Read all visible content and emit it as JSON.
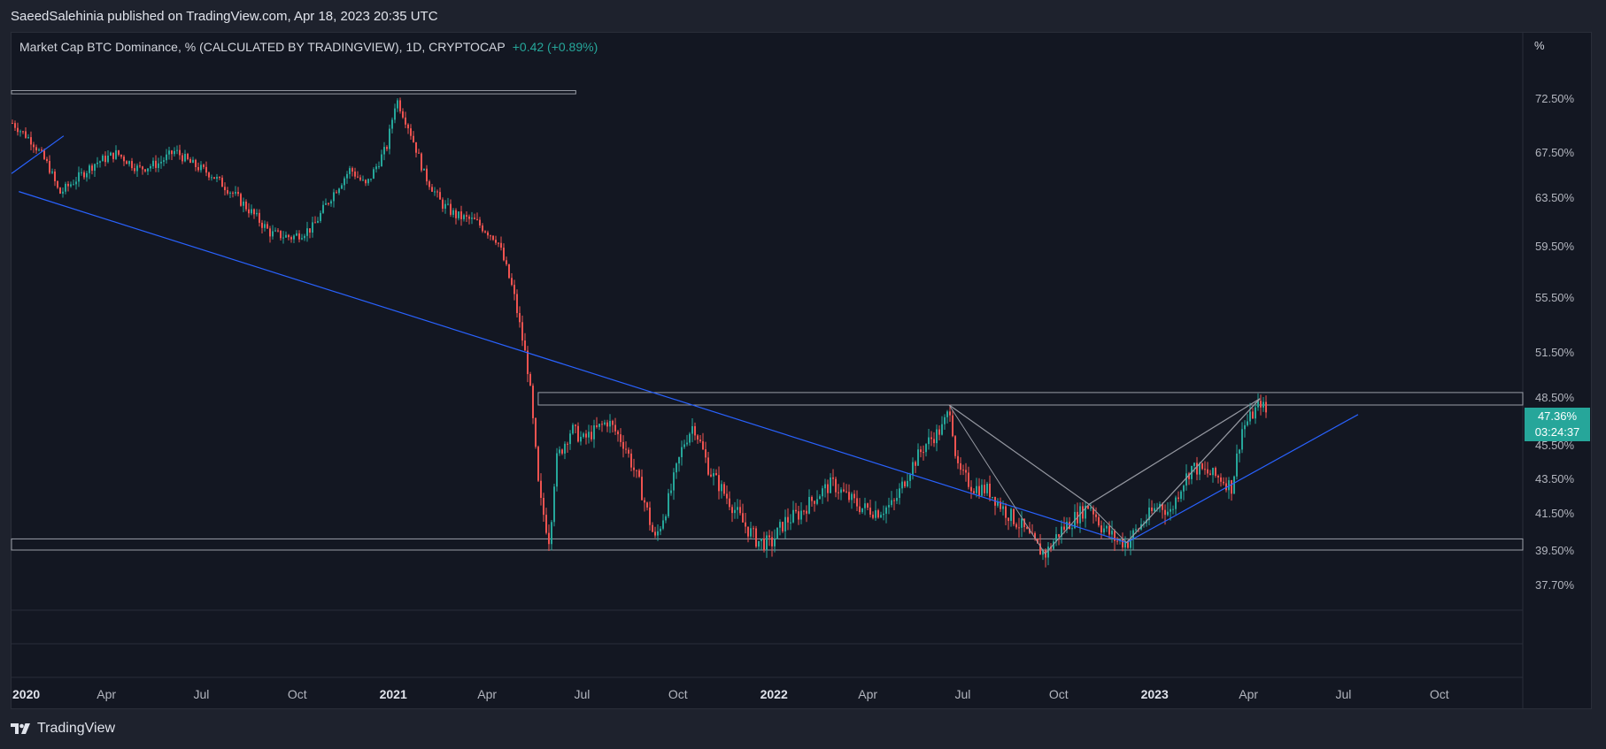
{
  "header": {
    "published_text": "SaeedSalehinia published on TradingView.com, Apr 18, 2023 20:35 UTC"
  },
  "legend": {
    "symbol_text": "Market Cap BTC Dominance, % (CALCULATED BY TRADINGVIEW), 1D, CRYPTOCAP",
    "change_text": "+0.42 (+0.89%)"
  },
  "price_tag": {
    "price": "47.36%",
    "countdown": "03:24:37"
  },
  "brand": {
    "name": "TradingView"
  },
  "colors": {
    "up": "#26a69a",
    "down": "#ef5350",
    "trendline": "#2962ff",
    "zone": "#b2b5be",
    "background": "#131722"
  },
  "chart_data": {
    "type": "candlestick",
    "title": "Market Cap BTC Dominance, % (CALCULATED BY TRADINGVIEW), 1D, CRYPTOCAP",
    "y_unit": "%",
    "y_ticks": [
      "72.50%",
      "67.50%",
      "63.50%",
      "59.50%",
      "55.50%",
      "51.50%",
      "48.50%",
      "45.50%",
      "43.50%",
      "41.50%",
      "39.50%",
      "37.70%"
    ],
    "x_ticks": [
      {
        "label": "2020",
        "date": "2020-01-01",
        "bold": true
      },
      {
        "label": "Apr",
        "date": "2020-04-01",
        "bold": false
      },
      {
        "label": "Jul",
        "date": "2020-07-01",
        "bold": false
      },
      {
        "label": "Oct",
        "date": "2020-10-01",
        "bold": false
      },
      {
        "label": "2021",
        "date": "2021-01-01",
        "bold": true
      },
      {
        "label": "Apr",
        "date": "2021-04-01",
        "bold": false
      },
      {
        "label": "Jul",
        "date": "2021-07-01",
        "bold": false
      },
      {
        "label": "Oct",
        "date": "2021-10-01",
        "bold": false
      },
      {
        "label": "2022",
        "date": "2022-01-01",
        "bold": true
      },
      {
        "label": "Apr",
        "date": "2022-04-01",
        "bold": false
      },
      {
        "label": "Jul",
        "date": "2022-07-01",
        "bold": false
      },
      {
        "label": "Oct",
        "date": "2022-10-01",
        "bold": false
      },
      {
        "label": "2023",
        "date": "2023-01-01",
        "bold": true
      },
      {
        "label": "Apr",
        "date": "2023-04-01",
        "bold": false
      },
      {
        "label": "Jul",
        "date": "2023-07-01",
        "bold": false
      },
      {
        "label": "Oct",
        "date": "2023-10-01",
        "bold": false
      }
    ],
    "series": [
      {
        "points": [
          [
            "2020-01-01",
            70.2
          ],
          [
            "2020-01-20",
            68.5
          ],
          [
            "2020-02-05",
            66.2
          ],
          [
            "2020-02-15",
            63.8
          ],
          [
            "2020-03-01",
            65.0
          ],
          [
            "2020-03-20",
            66.5
          ],
          [
            "2020-04-10",
            67.4
          ],
          [
            "2020-05-01",
            66.0
          ],
          [
            "2020-05-20",
            66.5
          ],
          [
            "2020-06-05",
            67.6
          ],
          [
            "2020-06-20",
            66.5
          ],
          [
            "2020-07-10",
            65.5
          ],
          [
            "2020-08-01",
            63.7
          ],
          [
            "2020-08-20",
            62.0
          ],
          [
            "2020-09-05",
            60.5
          ],
          [
            "2020-09-25",
            60.2
          ],
          [
            "2020-10-15",
            61.0
          ],
          [
            "2020-11-01",
            63.5
          ],
          [
            "2020-11-20",
            66.0
          ],
          [
            "2020-12-05",
            64.5
          ],
          [
            "2020-12-25",
            68.0
          ],
          [
            "2021-01-03",
            72.5
          ],
          [
            "2021-01-15",
            69.8
          ],
          [
            "2021-01-30",
            65.5
          ],
          [
            "2021-02-15",
            63.0
          ],
          [
            "2021-03-01",
            62.0
          ],
          [
            "2021-03-20",
            61.5
          ],
          [
            "2021-04-10",
            60.0
          ],
          [
            "2021-04-25",
            56.0
          ],
          [
            "2021-05-10",
            50.0
          ],
          [
            "2021-05-20",
            42.5
          ],
          [
            "2021-05-30",
            40.0
          ],
          [
            "2021-06-05",
            44.5
          ],
          [
            "2021-06-20",
            46.5
          ],
          [
            "2021-07-01",
            45.8
          ],
          [
            "2021-07-15",
            46.5
          ],
          [
            "2021-07-25",
            47.0
          ],
          [
            "2021-08-10",
            45.5
          ],
          [
            "2021-08-25",
            43.0
          ],
          [
            "2021-09-08",
            40.0
          ],
          [
            "2021-09-20",
            42.0
          ],
          [
            "2021-10-05",
            45.5
          ],
          [
            "2021-10-15",
            46.8
          ],
          [
            "2021-10-30",
            44.0
          ],
          [
            "2021-11-15",
            42.5
          ],
          [
            "2021-12-01",
            41.0
          ],
          [
            "2021-12-15",
            40.0
          ],
          [
            "2021-12-28",
            39.8
          ],
          [
            "2022-01-10",
            41.0
          ],
          [
            "2022-01-25",
            41.5
          ],
          [
            "2022-02-10",
            42.5
          ],
          [
            "2022-02-25",
            43.2
          ],
          [
            "2022-03-10",
            42.5
          ],
          [
            "2022-03-25",
            41.8
          ],
          [
            "2022-04-10",
            41.6
          ],
          [
            "2022-04-25",
            42.0
          ],
          [
            "2022-05-10",
            44.0
          ],
          [
            "2022-05-25",
            45.5
          ],
          [
            "2022-06-10",
            46.5
          ],
          [
            "2022-06-18",
            47.8
          ],
          [
            "2022-06-25",
            44.0
          ],
          [
            "2022-07-10",
            43.0
          ],
          [
            "2022-07-25",
            42.8
          ],
          [
            "2022-08-10",
            41.6
          ],
          [
            "2022-08-25",
            40.8
          ],
          [
            "2022-09-10",
            39.6
          ],
          [
            "2022-09-18",
            39.3
          ],
          [
            "2022-10-01",
            40.5
          ],
          [
            "2022-10-15",
            41.2
          ],
          [
            "2022-10-30",
            42.0
          ],
          [
            "2022-11-10",
            40.8
          ],
          [
            "2022-11-25",
            40.0
          ],
          [
            "2022-12-05",
            39.9
          ],
          [
            "2022-12-20",
            41.0
          ],
          [
            "2023-01-05",
            42.0
          ],
          [
            "2023-01-15",
            41.5
          ],
          [
            "2023-01-25",
            43.0
          ],
          [
            "2023-02-05",
            44.2
          ],
          [
            "2023-02-20",
            43.8
          ],
          [
            "2023-03-05",
            43.5
          ],
          [
            "2023-03-15",
            43.0
          ],
          [
            "2023-03-25",
            46.5
          ],
          [
            "2023-04-05",
            47.5
          ],
          [
            "2023-04-12",
            48.2
          ],
          [
            "2023-04-18",
            47.36
          ]
        ]
      }
    ],
    "last_value": 47.36,
    "change": "+0.42 (+0.89%)"
  }
}
